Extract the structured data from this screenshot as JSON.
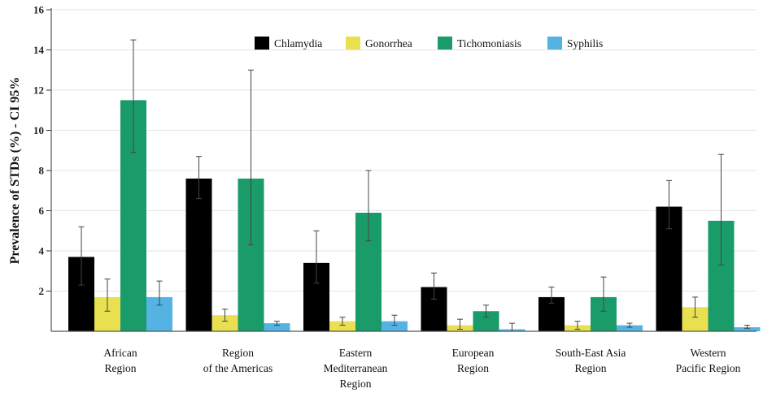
{
  "chart_data": {
    "type": "bar",
    "title": "",
    "xlabel": "",
    "ylabel": "Prevalence of STDs (%) - CI 95%",
    "ylim": [
      0,
      16
    ],
    "yticks": [
      2,
      4,
      6,
      8,
      10,
      12,
      14,
      16
    ],
    "grid": true,
    "legend_position": "top-center",
    "categories": [
      [
        "African",
        "Region"
      ],
      [
        "Region",
        "of the Americas"
      ],
      [
        "Eastern",
        "Mediterranean",
        "Region"
      ],
      [
        "European",
        "Region"
      ],
      [
        "South-East Asia",
        "Region"
      ],
      [
        "Western",
        "Pacific Region"
      ]
    ],
    "series": [
      {
        "name": "Chlamydia",
        "color": "#000000",
        "values": [
          3.7,
          7.6,
          3.4,
          2.2,
          1.7,
          6.2
        ],
        "ci_low": [
          2.3,
          6.6,
          2.4,
          1.6,
          1.4,
          5.1
        ],
        "ci_high": [
          5.2,
          8.7,
          5.0,
          2.9,
          2.2,
          7.5
        ]
      },
      {
        "name": "Gonorrhea",
        "color": "#e8e050",
        "values": [
          1.7,
          0.8,
          0.5,
          0.3,
          0.3,
          1.2
        ],
        "ci_low": [
          1.0,
          0.5,
          0.3,
          0.1,
          0.1,
          0.7
        ],
        "ci_high": [
          2.6,
          1.1,
          0.7,
          0.6,
          0.5,
          1.7
        ]
      },
      {
        "name": "Tichomoniasis",
        "color": "#1a9b6a",
        "values": [
          11.5,
          7.6,
          5.9,
          1.0,
          1.7,
          5.5
        ],
        "ci_low": [
          8.9,
          4.3,
          4.5,
          0.7,
          1.0,
          3.3
        ],
        "ci_high": [
          14.5,
          13.0,
          8.0,
          1.3,
          2.7,
          8.8
        ]
      },
      {
        "name": "Syphilis",
        "color": "#54b3e3",
        "values": [
          1.7,
          0.4,
          0.5,
          0.1,
          0.3,
          0.2
        ],
        "ci_low": [
          1.3,
          0.3,
          0.3,
          0.0,
          0.2,
          0.15
        ],
        "ci_high": [
          2.5,
          0.5,
          0.8,
          0.4,
          0.4,
          0.3
        ]
      }
    ]
  }
}
